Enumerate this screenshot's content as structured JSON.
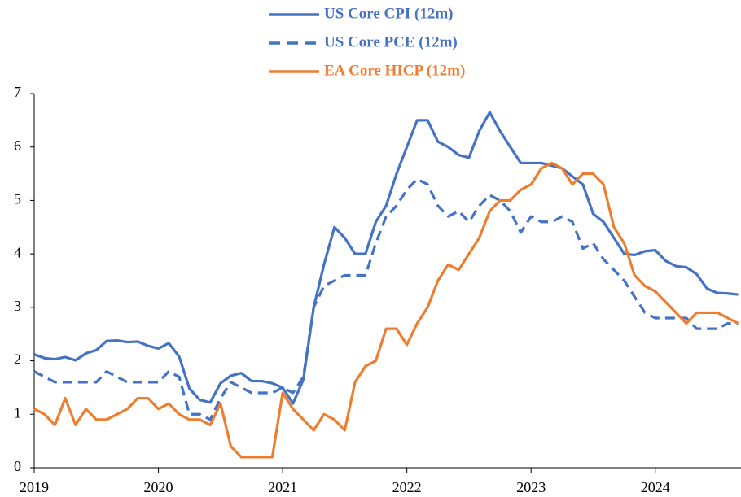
{
  "chart_data": {
    "type": "line",
    "x": [
      2019,
      2019.083,
      2019.167,
      2019.25,
      2019.333,
      2019.417,
      2019.5,
      2019.583,
      2019.667,
      2019.75,
      2019.833,
      2019.917,
      2020,
      2020.083,
      2020.167,
      2020.25,
      2020.333,
      2020.417,
      2020.5,
      2020.583,
      2020.667,
      2020.75,
      2020.833,
      2020.917,
      2021,
      2021.083,
      2021.167,
      2021.25,
      2021.333,
      2021.417,
      2021.5,
      2021.583,
      2021.667,
      2021.75,
      2021.833,
      2021.917,
      2022,
      2022.083,
      2022.167,
      2022.25,
      2022.333,
      2022.417,
      2022.5,
      2022.583,
      2022.667,
      2022.75,
      2022.833,
      2022.917,
      2023,
      2023.083,
      2023.167,
      2023.25,
      2023.333,
      2023.417,
      2023.5,
      2023.583,
      2023.667,
      2023.75,
      2023.833,
      2023.917,
      2024,
      2024.083,
      2024.167,
      2024.25,
      2024.333,
      2024.417,
      2024.5,
      2024.583,
      2024.667
    ],
    "series": [
      {
        "name": "US Core CPI (12m)",
        "color": "#4472c4",
        "dashed": false,
        "values": [
          2.12,
          2.05,
          2.03,
          2.07,
          2.01,
          2.14,
          2.2,
          2.37,
          2.38,
          2.35,
          2.36,
          2.28,
          2.23,
          2.33,
          2.08,
          1.48,
          1.27,
          1.22,
          1.58,
          1.72,
          1.77,
          1.62,
          1.62,
          1.58,
          1.5,
          1.2,
          1.65,
          3.0,
          3.8,
          4.5,
          4.3,
          4.0,
          4.0,
          4.6,
          4.9,
          5.5,
          6.0,
          6.5,
          6.5,
          6.1,
          6.0,
          5.85,
          5.8,
          6.3,
          6.65,
          6.3,
          6.0,
          5.7,
          5.7,
          5.7,
          5.65,
          5.6,
          5.45,
          5.3,
          4.75,
          4.6,
          4.3,
          4.0,
          3.98,
          4.05,
          4.07,
          3.87,
          3.77,
          3.75,
          3.62,
          3.35,
          3.27,
          3.26,
          3.24
        ]
      },
      {
        "name": "US Core PCE (12m)",
        "color": "#4472c4",
        "dashed": true,
        "values": [
          1.8,
          1.7,
          1.6,
          1.6,
          1.6,
          1.6,
          1.6,
          1.8,
          1.7,
          1.6,
          1.6,
          1.6,
          1.6,
          1.8,
          1.7,
          1.0,
          1.0,
          0.9,
          1.3,
          1.6,
          1.5,
          1.4,
          1.4,
          1.4,
          1.5,
          1.4,
          1.7,
          3.0,
          3.4,
          3.5,
          3.6,
          3.6,
          3.6,
          4.2,
          4.7,
          4.9,
          5.2,
          5.4,
          5.3,
          4.9,
          4.7,
          4.8,
          4.6,
          4.9,
          5.1,
          5.0,
          4.8,
          4.4,
          4.7,
          4.6,
          4.6,
          4.7,
          4.6,
          4.1,
          4.2,
          3.9,
          3.7,
          3.5,
          3.2,
          2.9,
          2.8,
          2.8,
          2.8,
          2.8,
          2.6,
          2.6,
          2.6,
          2.7,
          2.7
        ]
      },
      {
        "name": "EA Core HICP (12m)",
        "color": "#ed7d31",
        "dashed": false,
        "values": [
          1.1,
          1.0,
          0.8,
          1.3,
          0.8,
          1.1,
          0.9,
          0.9,
          1.0,
          1.1,
          1.3,
          1.3,
          1.1,
          1.2,
          1.0,
          0.9,
          0.9,
          0.8,
          1.2,
          0.4,
          0.2,
          0.2,
          0.2,
          0.2,
          1.4,
          1.1,
          0.9,
          0.7,
          1.0,
          0.9,
          0.7,
          1.6,
          1.9,
          2.0,
          2.6,
          2.6,
          2.3,
          2.7,
          3.0,
          3.5,
          3.8,
          3.7,
          4.0,
          4.3,
          4.8,
          5.0,
          5.0,
          5.2,
          5.3,
          5.6,
          5.7,
          5.6,
          5.3,
          5.5,
          5.5,
          5.3,
          4.5,
          4.2,
          3.6,
          3.4,
          3.3,
          3.1,
          2.9,
          2.7,
          2.9,
          2.9,
          2.9,
          2.8,
          2.7
        ]
      }
    ],
    "xlim": [
      2019,
      2024.69
    ],
    "xticks": [
      2019,
      2020,
      2021,
      2022,
      2023,
      2024
    ],
    "ylim": [
      0,
      7
    ],
    "yticks": [
      0,
      1,
      2,
      3,
      4,
      5,
      6,
      7
    ],
    "grid": false
  }
}
